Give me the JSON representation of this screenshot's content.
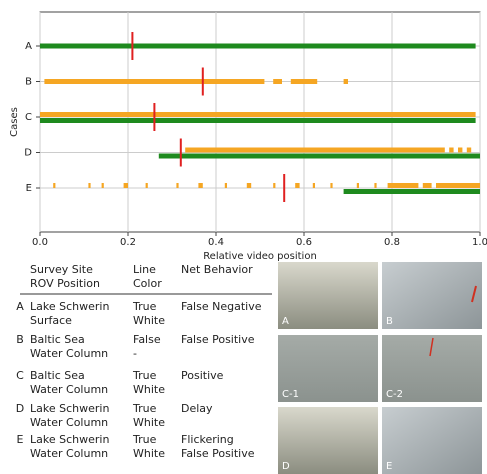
{
  "chart_data": {
    "type": "timeline",
    "xlabel": "Relative video position",
    "ylabel": "Cases",
    "xlim": [
      0,
      1
    ],
    "xticks": [
      {
        "value": 0,
        "label": "0.0"
      },
      0.2,
      0.4,
      0.6,
      0.8,
      {
        "value": 1,
        "label": "1.0"
      }
    ],
    "grid": true,
    "ground_truth_color": "#1e8a1e",
    "detection_color": "#f5a623",
    "marker_color": "#e02020",
    "cases": [
      {
        "name": "A",
        "ground_truth": [
          [
            0,
            0.99
          ]
        ],
        "detections": [],
        "marker": 0.21
      },
      {
        "name": "B",
        "ground_truth": [],
        "detections": [
          [
            0.01,
            0.51
          ],
          [
            0.53,
            0.55
          ],
          [
            0.57,
            0.63
          ],
          [
            0.69,
            0.7
          ]
        ],
        "marker": 0.37
      },
      {
        "name": "C",
        "ground_truth": [
          [
            0,
            0.99
          ]
        ],
        "detections": [
          [
            0,
            0.99
          ]
        ],
        "marker": 0.26
      },
      {
        "name": "D",
        "ground_truth": [
          [
            0.27,
            1
          ]
        ],
        "detections": [
          [
            0.33,
            0.92
          ],
          [
            0.93,
            0.94
          ],
          [
            0.95,
            0.96
          ],
          [
            0.97,
            0.98
          ]
        ],
        "marker": 0.32
      },
      {
        "name": "E",
        "ground_truth": [
          [
            0.69,
            1
          ]
        ],
        "detections": [
          [
            0.03,
            0.035
          ],
          [
            0.11,
            0.115
          ],
          [
            0.14,
            0.145
          ],
          [
            0.19,
            0.2
          ],
          [
            0.24,
            0.245
          ],
          [
            0.31,
            0.315
          ],
          [
            0.36,
            0.37
          ],
          [
            0.42,
            0.425
          ],
          [
            0.47,
            0.48
          ],
          [
            0.53,
            0.535
          ],
          [
            0.58,
            0.59
          ],
          [
            0.62,
            0.625
          ],
          [
            0.66,
            0.665
          ],
          [
            0.72,
            0.725
          ],
          [
            0.76,
            0.765
          ],
          [
            0.79,
            0.86
          ],
          [
            0.87,
            0.89
          ],
          [
            0.9,
            1
          ]
        ],
        "marker": 0.555
      }
    ]
  },
  "table": {
    "header": [
      [
        "Survey Site",
        "ROV Position"
      ],
      [
        "Line",
        "Color"
      ],
      [
        "Net Behavior"
      ]
    ],
    "rows": [
      [
        "A",
        [
          "Lake Schwerin",
          "Surface"
        ],
        [
          "True",
          "White"
        ],
        [
          "False Negative"
        ]
      ],
      [
        "B",
        [
          "Baltic Sea",
          "Water Column"
        ],
        [
          "False",
          "-"
        ],
        [
          "False Positive"
        ]
      ],
      [
        "C",
        [
          "Baltic Sea",
          "Water Column"
        ],
        [
          "True",
          "White"
        ],
        [
          "Positive"
        ]
      ],
      [
        "D",
        [
          "Lake Schwerin",
          "Water Column"
        ],
        [
          "True",
          "White"
        ],
        [
          "Delay"
        ]
      ],
      [
        "E",
        [
          "Lake Schwerin",
          "Water Column"
        ],
        [
          "True",
          "White"
        ],
        [
          "Flickering",
          "False Positive"
        ]
      ]
    ]
  },
  "images": [
    "A",
    "B",
    "C-1",
    "C-2",
    "D",
    "E"
  ]
}
